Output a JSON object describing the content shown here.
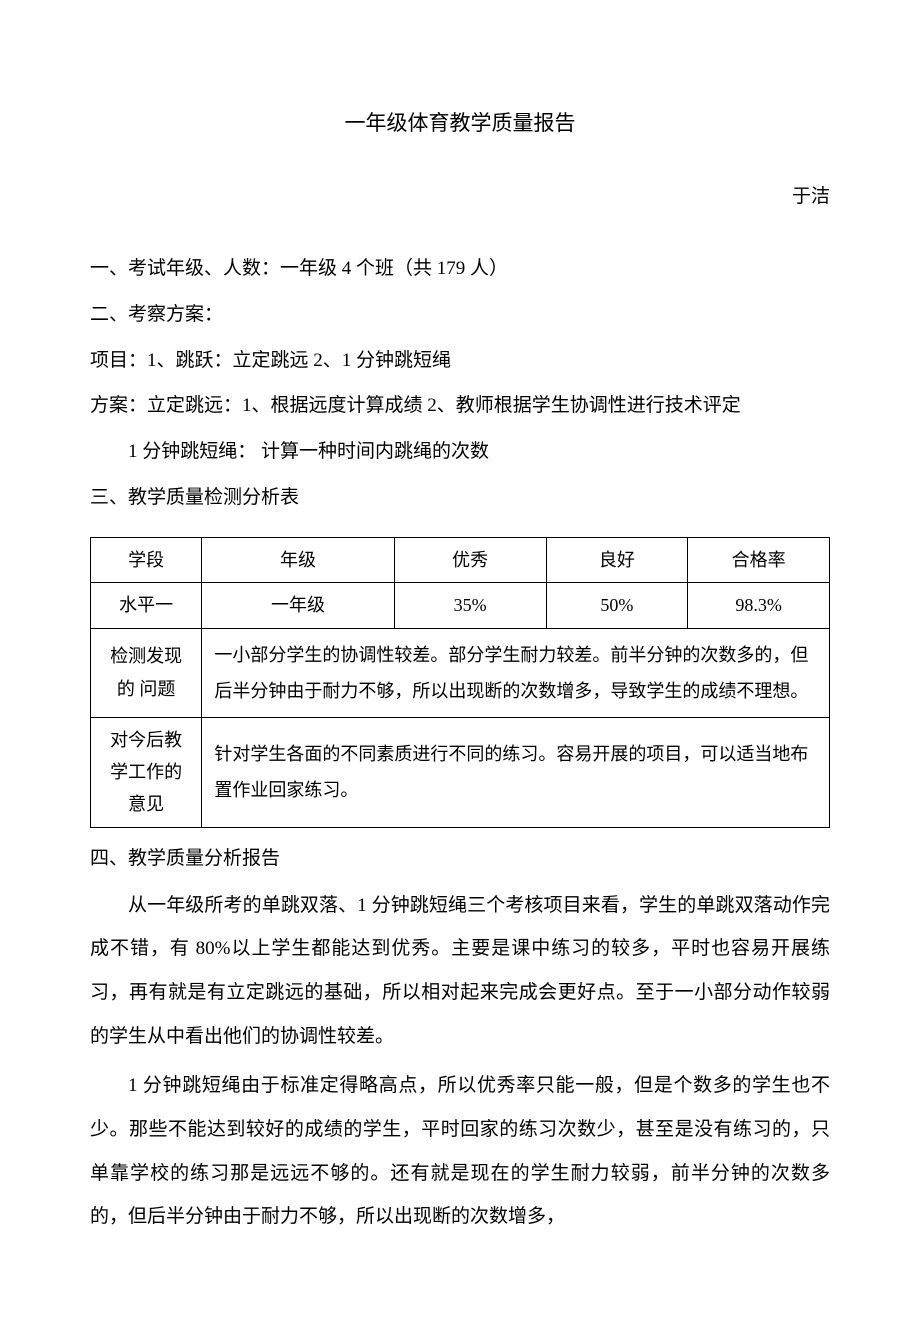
{
  "title": "一年级体育教学质量报告",
  "author": "于洁",
  "section1": "一、考试年级、人数：一年级 4 个班（共 179  人）",
  "section2": "二、考察方案：",
  "section2_line1": "项目：1、跳跃：立定跳远  2、1 分钟跳短绳",
  "section2_line2": "方案：立定跳远：1、根据远度计算成绩 2、教师根据学生协调性进行技术评定",
  "section2_line3": "1 分钟跳短绳： 计算一种时间内跳绳的次数",
  "section3": "三、教学质量检测分析表",
  "table": {
    "headers": {
      "h1": "学段",
      "h2": "年级",
      "h3": "优秀",
      "h4": "良好",
      "h5": "合格率"
    },
    "row1": {
      "c1": "水平一",
      "c2": "一年级",
      "c3": "35%",
      "c4": "50%",
      "c5": "98.3%"
    },
    "row2": {
      "label": "检测发现的 问题",
      "content": "一小部分学生的协调性较差。部分学生耐力较差。前半分钟的次数多的，但后半分钟由于耐力不够，所以出现断的次数增多，导致学生的成绩不理想。"
    },
    "row3": {
      "label": "对今后教学工作的意见",
      "content": "针对学生各面的不同素质进行不同的练习。容易开展的项目，可以适当地布置作业回家练习。"
    }
  },
  "section4": "四、教学质量分析报告",
  "para1": "从一年级所考的单跳双落、1 分钟跳短绳三个考核项目来看，学生的单跳双落动作完成不错，有 80%以上学生都能达到优秀。主要是课中练习的较多，平时也容易开展练习，再有就是有立定跳远的基础，所以相对起来完成会更好点。至于一小部分动作较弱的学生从中看出他们的协调性较差。",
  "para2": "1 分钟跳短绳由于标准定得略高点，所以优秀率只能一般，但是个数多的学生也不少。那些不能达到较好的成绩的学生，平时回家的练习次数少，甚至是没有练习的，只单靠学校的练习那是远远不够的。还有就是现在的学生耐力较弱，前半分钟的次数多的，但后半分钟由于耐力不够，所以出现断的次数增多，"
}
